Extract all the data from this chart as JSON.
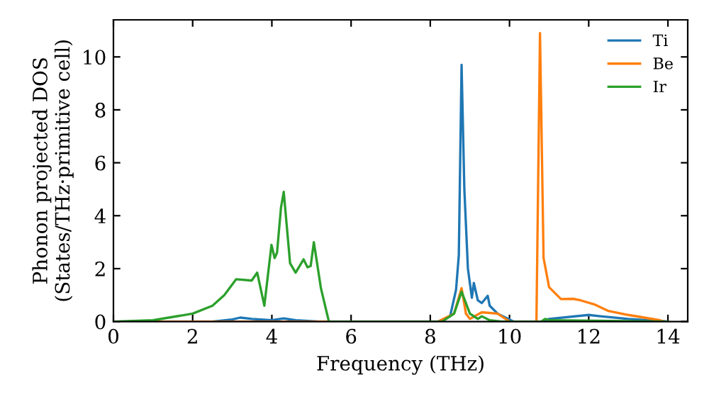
{
  "chart_data": {
    "type": "line",
    "xlabel": "Frequency (THz)",
    "ylabel": "Phonon projected DOS\n(States/THz·primitive cell)",
    "xlim": [
      0,
      14.5
    ],
    "ylim": [
      0,
      11.4
    ],
    "xticks": [
      0,
      2,
      4,
      6,
      8,
      10,
      12,
      14
    ],
    "yticks": [
      0,
      2,
      4,
      6,
      8,
      10
    ],
    "grid": false,
    "legend": "top right",
    "marker": "none",
    "line_style": "solid",
    "series": [
      {
        "name": "Ti",
        "color": "#1f77b4",
        "x": [
          0,
          2.5,
          3.0,
          3.2,
          3.5,
          4.0,
          4.3,
          4.6,
          5.2,
          8.2,
          8.5,
          8.65,
          8.72,
          8.79,
          8.86,
          8.95,
          9.05,
          9.1,
          9.2,
          9.3,
          9.45,
          9.5,
          9.7,
          10.1,
          10.8,
          11.0,
          12.0,
          12.3,
          13.0,
          14.0
        ],
        "values": [
          0,
          0,
          0.08,
          0.15,
          0.1,
          0.05,
          0.12,
          0.05,
          0,
          0,
          0.2,
          1.2,
          2.5,
          9.7,
          5.0,
          2.0,
          0.9,
          1.46,
          0.8,
          0.7,
          0.97,
          0.6,
          0.3,
          0,
          0,
          0.1,
          0.25,
          0.2,
          0.1,
          0
        ]
      },
      {
        "name": "Be",
        "color": "#ff7f0e",
        "x": [
          0,
          8.2,
          8.6,
          8.79,
          8.9,
          9.0,
          9.3,
          9.7,
          10.0,
          10.68,
          10.77,
          10.86,
          11.0,
          11.3,
          11.6,
          11.8,
          12.14,
          12.5,
          13.0,
          13.8,
          13.9,
          14.0
        ],
        "values": [
          0,
          0,
          0.3,
          1.26,
          0.3,
          0.1,
          0.35,
          0.3,
          0,
          0,
          10.9,
          2.4,
          1.3,
          0.85,
          0.86,
          0.8,
          0.65,
          0.4,
          0.25,
          0.05,
          0,
          0
        ]
      },
      {
        "name": "Ir",
        "color": "#2ca02c",
        "x": [
          0,
          1.0,
          2.0,
          2.5,
          2.8,
          3.1,
          3.49,
          3.63,
          3.81,
          3.99,
          4.07,
          4.13,
          4.23,
          4.3,
          4.46,
          4.6,
          4.8,
          4.9,
          4.98,
          5.06,
          5.24,
          5.44,
          8.3,
          8.6,
          8.79,
          9.0,
          9.2,
          9.3,
          9.5,
          9.8,
          10.8,
          10.9,
          11.0,
          14.0
        ],
        "values": [
          0,
          0.05,
          0.3,
          0.6,
          1.0,
          1.6,
          1.55,
          1.85,
          0.6,
          2.9,
          2.4,
          2.6,
          4.3,
          4.9,
          2.2,
          1.85,
          2.35,
          2.05,
          2.1,
          3.0,
          1.25,
          0,
          0,
          0.3,
          1.13,
          0.3,
          0.1,
          0.2,
          0.05,
          0,
          0,
          0.1,
          0.05,
          0
        ]
      }
    ]
  }
}
